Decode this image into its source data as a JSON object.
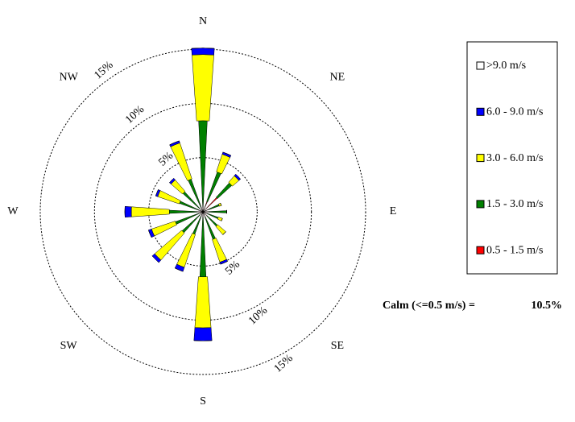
{
  "chart_data": {
    "type": "windrose",
    "categories": [
      "N",
      null,
      "NE",
      null,
      "E",
      null,
      "SE",
      null,
      "S",
      null,
      "SW",
      null,
      "W",
      null,
      "NW",
      null
    ],
    "series": [
      {
        "name": ">9.0 m/s",
        "color": "#ffffff",
        "values": [
          0,
          0,
          0,
          0,
          0,
          0,
          0,
          0,
          0,
          0,
          0,
          0,
          0,
          0,
          0,
          0
        ]
      },
      {
        "name": "6.0 - 9.0 m/s",
        "color": "#0000ff",
        "values": [
          0.6,
          0.2,
          0.2,
          0,
          0,
          0,
          0,
          0.2,
          1.2,
          0.4,
          0.3,
          0.3,
          0.6,
          0.2,
          0.2,
          0.2
        ]
      },
      {
        "name": "3.0 - 6.0 m/s",
        "color": "#ffff00",
        "values": [
          6.1,
          1.7,
          0.8,
          0.2,
          0,
          0.4,
          1.0,
          2.2,
          4.7,
          3.2,
          3.3,
          2.3,
          3.5,
          2.1,
          1.4,
          3.5
        ]
      },
      {
        "name": "1.5 - 3.0 m/s",
        "color": "#008000",
        "values": [
          8.0,
          2.9,
          1.8,
          1.0,
          1.7,
          1.1,
          1.3,
          2.2,
          5.5,
          1.8,
          2.2,
          2.3,
          2.6,
          1.9,
          2.1,
          2.8
        ]
      },
      {
        "name": "0.5 - 1.5 m/s",
        "color": "#ff0000",
        "values": [
          0.4,
          1.0,
          1.8,
          0.6,
          0.5,
          0.4,
          0.5,
          0.5,
          0.5,
          0.4,
          0.4,
          0.4,
          0.5,
          0.4,
          0.4,
          0.4
        ]
      }
    ],
    "rlim": [
      0,
      15
    ],
    "rticks": [
      {
        "value": 5,
        "label": "5%"
      },
      {
        "value": 10,
        "label": "10%"
      },
      {
        "value": 15,
        "label": "15%"
      }
    ],
    "calm": {
      "label": "Calm (<=0.5 m/s) =",
      "value": 10.5,
      "value_label": "10.5%"
    }
  }
}
